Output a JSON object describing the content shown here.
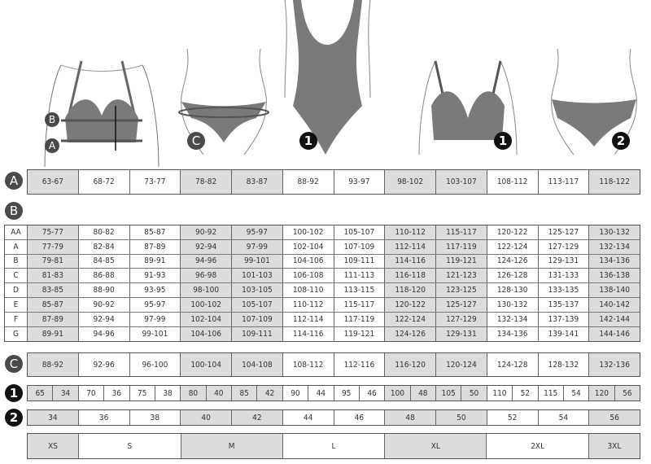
{
  "labels": {
    "a": "A",
    "b": "B",
    "c": "C",
    "one": "1",
    "two": "2"
  },
  "shaded_columns": [
    0,
    3,
    4,
    7,
    8,
    11
  ],
  "colors": {
    "shade": "#dcdcdc",
    "garment": "#7a7a7a",
    "badge": "#333333"
  },
  "row_a": [
    "63-67",
    "68-72",
    "73-77",
    "78-82",
    "83-87",
    "88-92",
    "93-97",
    "98-102",
    "103-107",
    "108-112",
    "113-117",
    "118-122"
  ],
  "table_b": [
    {
      "cup": "AA",
      "values": [
        "75-77",
        "80-82",
        "85-87",
        "90-92",
        "95-97",
        "100-102",
        "105-107",
        "110-112",
        "115-117",
        "120-122",
        "125-127",
        "130-132"
      ]
    },
    {
      "cup": "A",
      "values": [
        "77-79",
        "82-84",
        "87-89",
        "92-94",
        "97-99",
        "102-104",
        "107-109",
        "112-114",
        "117-119",
        "122-124",
        "127-129",
        "132-134"
      ]
    },
    {
      "cup": "B",
      "values": [
        "79-81",
        "84-85",
        "89-91",
        "94-96",
        "99-101",
        "104-106",
        "109-111",
        "114-116",
        "119-121",
        "124-126",
        "129-131",
        "134-136"
      ]
    },
    {
      "cup": "C",
      "values": [
        "81-83",
        "86-88",
        "91-93",
        "96-98",
        "101-103",
        "106-108",
        "111-113",
        "116-118",
        "121-123",
        "126-128",
        "131-133",
        "136-138"
      ]
    },
    {
      "cup": "D",
      "values": [
        "83-85",
        "88-90",
        "93-95",
        "98-100",
        "103-105",
        "108-110",
        "113-115",
        "118-120",
        "123-125",
        "128-130",
        "133-135",
        "138-140"
      ]
    },
    {
      "cup": "E",
      "values": [
        "85-87",
        "90-92",
        "95-97",
        "100-102",
        "105-107",
        "110-112",
        "115-117",
        "120-122",
        "125-127",
        "130-132",
        "135-137",
        "140-142"
      ]
    },
    {
      "cup": "F",
      "values": [
        "87-89",
        "92-94",
        "97-99",
        "102-104",
        "107-109",
        "112-114",
        "117-119",
        "122-124",
        "127-129",
        "132-134",
        "137-139",
        "142-144"
      ]
    },
    {
      "cup": "G",
      "values": [
        "89-91",
        "94-96",
        "99-101",
        "104-106",
        "109-111",
        "114-116",
        "119-121",
        "124-126",
        "129-131",
        "134-136",
        "139-141",
        "144-146"
      ]
    }
  ],
  "row_c": [
    "88-92",
    "92-96",
    "96-100",
    "100-104",
    "104-108",
    "108-112",
    "112-116",
    "116-120",
    "120-124",
    "124-128",
    "128-132",
    "132-136"
  ],
  "row_1": [
    [
      "65",
      "34"
    ],
    [
      "70",
      "36"
    ],
    [
      "75",
      "38"
    ],
    [
      "80",
      "40"
    ],
    [
      "85",
      "42"
    ],
    [
      "90",
      "44"
    ],
    [
      "95",
      "46"
    ],
    [
      "100",
      "48"
    ],
    [
      "105",
      "50"
    ],
    [
      "110",
      "52"
    ],
    [
      "115",
      "54"
    ],
    [
      "120",
      "56"
    ]
  ],
  "row_2": [
    "34",
    "36",
    "38",
    "40",
    "42",
    "44",
    "46",
    "48",
    "50",
    "52",
    "54",
    "56"
  ],
  "sizes": [
    {
      "label": "XS",
      "span": 1
    },
    {
      "label": "S",
      "span": 2
    },
    {
      "label": "M",
      "span": 2
    },
    {
      "label": "L",
      "span": 2
    },
    {
      "label": "XL",
      "span": 2
    },
    {
      "label": "2XL",
      "span": 2
    },
    {
      "label": "3XL",
      "span": 1
    }
  ]
}
